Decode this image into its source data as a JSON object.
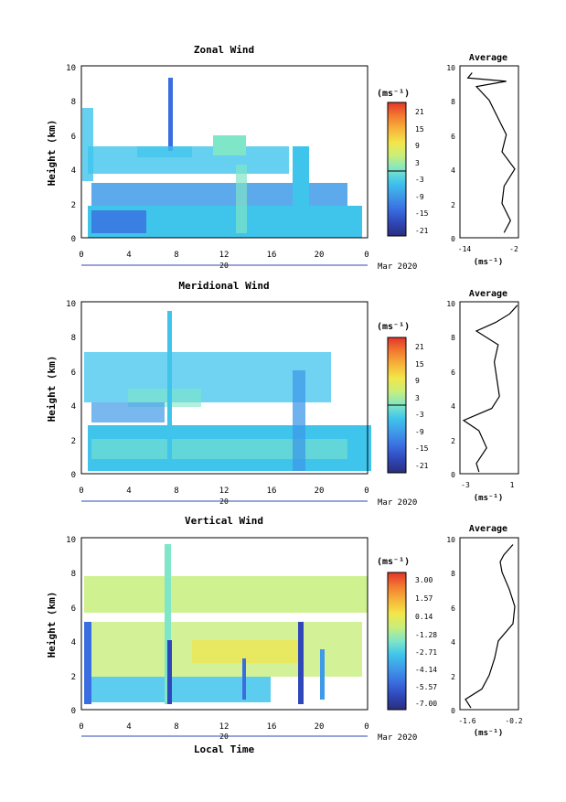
{
  "panels": [
    {
      "title": "Zonal Wind",
      "ylabel": "Height (km)",
      "yticks": [
        "0",
        "2",
        "4",
        "6",
        "8",
        "10"
      ],
      "xticks": [
        "0",
        "4",
        "8",
        "12",
        "16",
        "20",
        "0"
      ],
      "day_label": "20",
      "date_label": "Mar 2020",
      "colorbar_unit": "(ms⁻¹)",
      "colorbar_ticks": [
        "21",
        "15",
        "9",
        "3",
        "-3",
        "-9",
        "-15",
        "-21"
      ],
      "avg_title": "Average",
      "avg_xticks": [
        "-14",
        "-2"
      ],
      "avg_xlabel": "(ms⁻¹)"
    },
    {
      "title": "Meridional Wind",
      "ylabel": "Height (km)",
      "yticks": [
        "0",
        "2",
        "4",
        "6",
        "8",
        "10"
      ],
      "xticks": [
        "0",
        "4",
        "8",
        "12",
        "16",
        "20",
        "0"
      ],
      "day_label": "20",
      "date_label": "Mar 2020",
      "colorbar_unit": "(ms⁻¹)",
      "colorbar_ticks": [
        "21",
        "15",
        "9",
        "3",
        "-3",
        "-9",
        "-15",
        "-21"
      ],
      "avg_title": "Average",
      "avg_xticks": [
        "-3",
        "1"
      ],
      "avg_xlabel": "(ms⁻¹)"
    },
    {
      "title": "Vertical Wind",
      "ylabel": "Height (km)",
      "yticks": [
        "0",
        "2",
        "4",
        "6",
        "8",
        "10"
      ],
      "xticks": [
        "0",
        "4",
        "8",
        "12",
        "16",
        "20",
        "0"
      ],
      "day_label": "20",
      "date_label": "Mar 2020",
      "xlabel": "Local Time",
      "colorbar_unit": "(ms⁻¹)",
      "colorbar_ticks": [
        "3.00",
        "1.57",
        "0.14",
        "-1.28",
        "-2.71",
        "-4.14",
        "-5.57",
        "-7.00"
      ],
      "avg_title": "Average",
      "avg_xticks": [
        "-1.6",
        "-0.2"
      ],
      "avg_xlabel": "(ms⁻¹)"
    }
  ],
  "colors": {
    "colormap": [
      "#2a2e7c",
      "#2f47b8",
      "#3a6ee0",
      "#3f9ae8",
      "#3fc4ec",
      "#7fe6c8",
      "#c8ee7c",
      "#f2e64a",
      "#f7b43a",
      "#f27a30",
      "#e3342b"
    ]
  },
  "chart_data": [
    {
      "type": "heatmap",
      "title": "Zonal Wind",
      "ylabel": "Height (km)",
      "ylim": [
        0,
        10
      ],
      "xlim": [
        0,
        24
      ],
      "clim": [
        -21,
        21
      ],
      "profile": {
        "title": "Average",
        "xlabel": "(ms⁻¹)",
        "xlim": [
          -14,
          -2
        ],
        "heights": [
          0.3,
          1.0,
          2.0,
          3.0,
          4.0,
          5.0,
          6.0,
          7.0,
          8.0,
          8.8,
          9.1,
          9.3,
          9.6
        ],
        "values": [
          -4.5,
          -3,
          -5,
          -4.5,
          -2,
          -5,
          -4,
          -6,
          -8,
          -11,
          -4,
          -13,
          -12
        ]
      }
    },
    {
      "type": "heatmap",
      "title": "Meridional Wind",
      "ylabel": "Height (km)",
      "ylim": [
        0,
        10
      ],
      "xlim": [
        0,
        24
      ],
      "clim": [
        -21,
        21
      ],
      "profile": {
        "title": "Average",
        "xlabel": "(ms⁻¹)",
        "xlim": [
          -3,
          1
        ],
        "heights": [
          0.1,
          0.6,
          1.5,
          2.5,
          3.1,
          3.8,
          4.5,
          5.5,
          6.5,
          7.5,
          8.3,
          8.8,
          9.3,
          9.8
        ],
        "values": [
          -1.8,
          -2.0,
          -1.2,
          -1.8,
          -3.0,
          -0.8,
          -0.2,
          -0.4,
          -0.6,
          -0.3,
          -2.0,
          -0.5,
          0.6,
          1.2
        ]
      }
    },
    {
      "type": "heatmap",
      "title": "Vertical Wind",
      "ylabel": "Height (km)",
      "xlabel": "Local Time",
      "ylim": [
        0,
        10
      ],
      "xlim": [
        0,
        24
      ],
      "clim": [
        -7.0,
        3.0
      ],
      "profile": {
        "title": "Average",
        "xlabel": "(ms⁻¹)",
        "xlim": [
          -1.6,
          -0.2
        ],
        "heights": [
          0.1,
          0.6,
          1.2,
          2.0,
          3.0,
          4.0,
          5.0,
          6.0,
          7.0,
          8.0,
          8.6,
          9.0,
          9.6
        ],
        "values": [
          -1.4,
          -1.55,
          -1.1,
          -0.9,
          -0.75,
          -0.65,
          -0.25,
          -0.2,
          -0.35,
          -0.55,
          -0.6,
          -0.5,
          -0.25
        ]
      }
    }
  ]
}
